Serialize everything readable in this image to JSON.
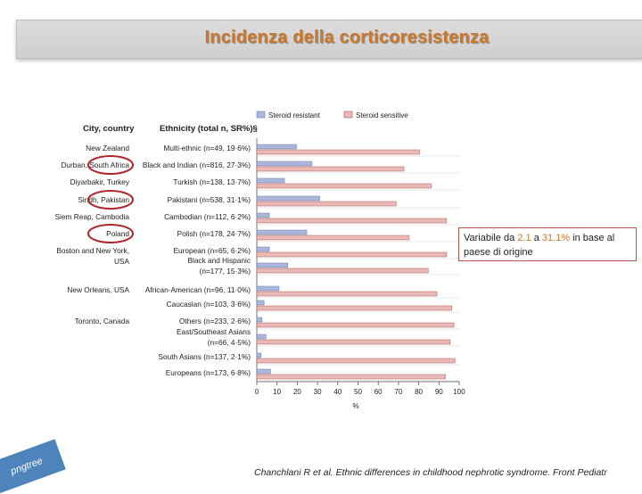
{
  "slide": {
    "title": "Incidenza della corticoresistenza",
    "callout": {
      "prefix": "Variabile da ",
      "low": "2.1",
      "middle": " a ",
      "high": "31.1%",
      "suffix": " in base al paese di origine"
    },
    "logo_text": "pngtree",
    "citation": "Chanchlani R et al. Ethnic differences in childhood nephrotic syndrome. Front Pediatr"
  },
  "colors": {
    "resistant": "#aab6dc",
    "resistant_border": "#6b7aa8",
    "sensitive": "#e8b9b7",
    "sensitive_border": "#b05b57",
    "circle": "#b0242b",
    "title": "#c9772a"
  },
  "chart_data": {
    "type": "bar",
    "orientation": "horizontal",
    "header_city": "City, country",
    "header_ethnicity": "Ethnicity (total n, SR%)§",
    "xlabel": "%",
    "xlim": [
      0,
      100
    ],
    "xticks": [
      0,
      10,
      20,
      30,
      40,
      50,
      60,
      70,
      80,
      90,
      100
    ],
    "legend": [
      "Steroid resistant",
      "Steroid sensitive"
    ],
    "legend_position": "top",
    "rows": [
      {
        "city": "New Zealand",
        "ethnicity": [
          "Multi-ethnic (n=49, 19·6%)"
        ],
        "resistant": 19.6,
        "sensitive": 80.4,
        "circled": false
      },
      {
        "city": "Durban, South Africa",
        "ethnicity": [
          "Black and Indian (n=816, 27·3%)"
        ],
        "resistant": 27.3,
        "sensitive": 72.7,
        "circled": true
      },
      {
        "city": "Diyarbakir, Turkey",
        "ethnicity": [
          "Turkish (n=138, 13·7%)"
        ],
        "resistant": 13.7,
        "sensitive": 86.3,
        "circled": false
      },
      {
        "city": "Sindh, Pakistan",
        "ethnicity": [
          "Pakistani (n=538, 31·1%)"
        ],
        "resistant": 31.1,
        "sensitive": 68.9,
        "circled": true
      },
      {
        "city": "Siem Reap, Cambodia",
        "ethnicity": [
          "Cambodian (n=112, 6·2%)"
        ],
        "resistant": 6.2,
        "sensitive": 93.8,
        "circled": false
      },
      {
        "city": "Poland",
        "ethnicity": [
          "Polish (n=178, 24·7%)"
        ],
        "resistant": 24.7,
        "sensitive": 75.3,
        "circled": true
      },
      {
        "city": "Boston and New York,",
        "city2": "USA",
        "ethnicity": [
          "European (n=65, 6·2%)"
        ],
        "resistant": 6.2,
        "sensitive": 93.8,
        "circled": false
      },
      {
        "city": "",
        "ethnicity": [
          "Black and Hispanic",
          "(n=177, 15·3%)"
        ],
        "resistant": 15.3,
        "sensitive": 84.7,
        "circled": false
      },
      {
        "city": "New Orleans, USA",
        "ethnicity": [
          "African-American (n=96, 11·0%)"
        ],
        "resistant": 11.0,
        "sensitive": 89.0,
        "circled": false
      },
      {
        "city": "",
        "ethnicity": [
          "Caucasian (n=103, 3·6%)"
        ],
        "resistant": 3.6,
        "sensitive": 96.4,
        "circled": false
      },
      {
        "city": "Toronto, Canada",
        "ethnicity": [
          "Others (n=233, 2·6%)"
        ],
        "resistant": 2.6,
        "sensitive": 97.4,
        "circled": false
      },
      {
        "city": "",
        "ethnicity": [
          "East/Southeast Asians",
          "(n=66, 4·5%)"
        ],
        "resistant": 4.5,
        "sensitive": 95.5,
        "circled": false
      },
      {
        "city": "",
        "ethnicity": [
          "South Asians (n=137, 2·1%)"
        ],
        "resistant": 2.1,
        "sensitive": 97.9,
        "circled": false
      },
      {
        "city": "",
        "ethnicity": [
          "Europeans (n=173, 6·8%)"
        ],
        "resistant": 6.8,
        "sensitive": 93.2,
        "circled": false
      }
    ]
  }
}
